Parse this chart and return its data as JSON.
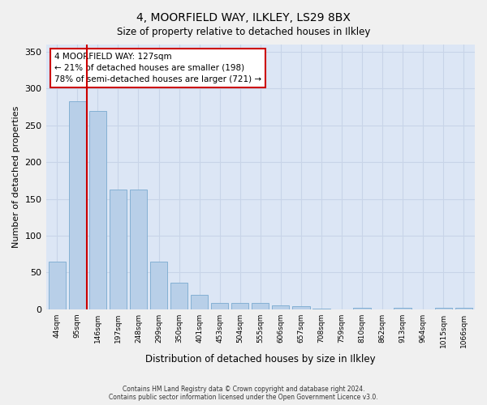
{
  "title": "4, MOORFIELD WAY, ILKLEY, LS29 8BX",
  "subtitle": "Size of property relative to detached houses in Ilkley",
  "xlabel": "Distribution of detached houses by size in Ilkley",
  "ylabel": "Number of detached properties",
  "footer_line1": "Contains HM Land Registry data © Crown copyright and database right 2024.",
  "footer_line2": "Contains public sector information licensed under the Open Government Licence v3.0.",
  "bar_labels": [
    "44sqm",
    "95sqm",
    "146sqm",
    "197sqm",
    "248sqm",
    "299sqm",
    "350sqm",
    "401sqm",
    "453sqm",
    "504sqm",
    "555sqm",
    "606sqm",
    "657sqm",
    "708sqm",
    "759sqm",
    "810sqm",
    "862sqm",
    "913sqm",
    "964sqm",
    "1015sqm",
    "1066sqm"
  ],
  "bar_values": [
    65,
    283,
    270,
    163,
    163,
    65,
    36,
    20,
    9,
    9,
    8,
    5,
    4,
    1,
    0,
    2,
    0,
    2,
    0,
    2,
    2
  ],
  "bar_color": "#b8cfe8",
  "bar_edge_color": "#7aaad0",
  "vline_color": "#cc0000",
  "annotation_text": "4 MOORFIELD WAY: 127sqm\n← 21% of detached houses are smaller (198)\n78% of semi-detached houses are larger (721) →",
  "annotation_box_color": "#ffffff",
  "annotation_box_edge": "#cc0000",
  "ylim": [
    0,
    360
  ],
  "yticks": [
    0,
    50,
    100,
    150,
    200,
    250,
    300,
    350
  ],
  "grid_color": "#c8d4e8",
  "axes_background": "#dce6f5",
  "fig_background": "#f0f0f0"
}
